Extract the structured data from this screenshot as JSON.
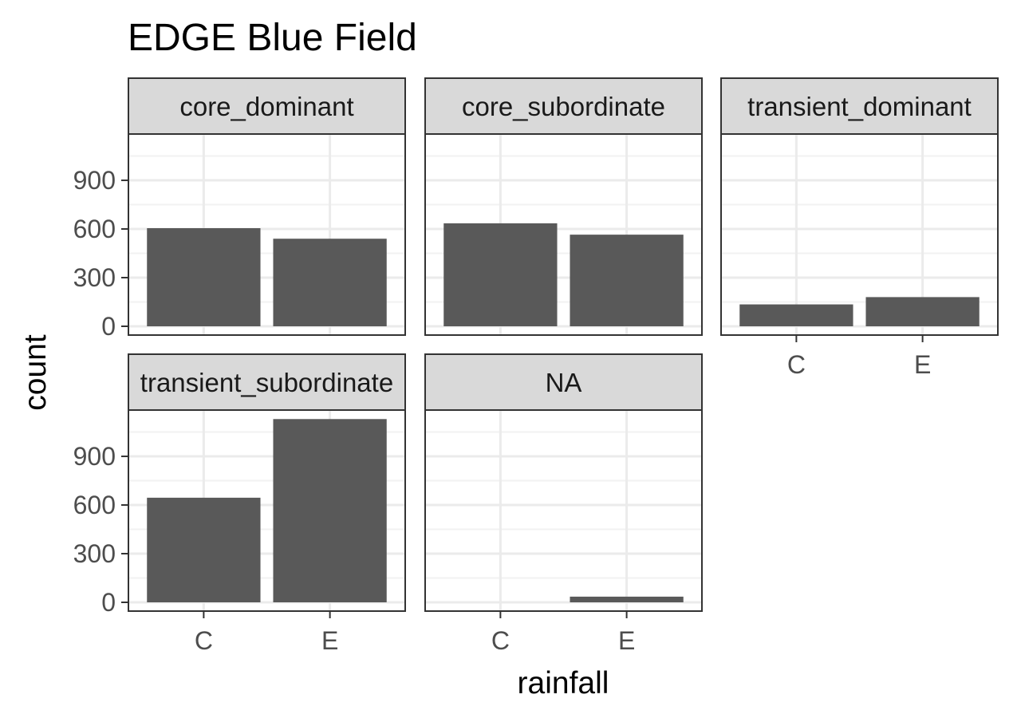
{
  "chart_data": {
    "type": "bar",
    "title": "EDGE Blue Field",
    "xlabel": "rainfall",
    "ylabel": "count",
    "categories": [
      "C",
      "E"
    ],
    "ylim": [
      0,
      1180
    ],
    "yticks": [
      0,
      300,
      600,
      900
    ],
    "grid": true,
    "facets": [
      {
        "name": "core_dominant",
        "values": [
          605,
          540
        ]
      },
      {
        "name": "core_subordinate",
        "values": [
          635,
          565
        ]
      },
      {
        "name": "transient_dominant",
        "values": [
          135,
          180
        ]
      },
      {
        "name": "transient_subordinate",
        "values": [
          645,
          1130
        ]
      },
      {
        "name": "NA",
        "values": [
          0,
          35
        ]
      }
    ],
    "colors": {
      "bar": "#595959",
      "strip_fill": "#d9d9d9",
      "panel_border": "#333333",
      "grid_major": "#ebebeb",
      "grid_minor": "#f2f2f2",
      "tick_text": "#4d4d4d"
    }
  }
}
